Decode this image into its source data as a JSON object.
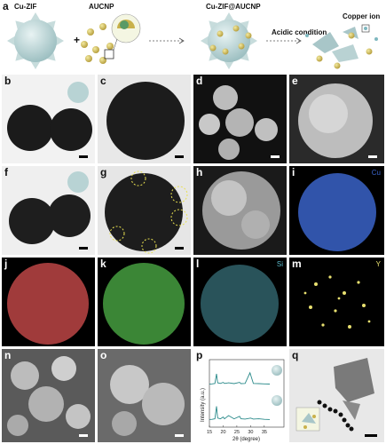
{
  "panel_a": {
    "label": "a",
    "cu_zif": "Cu-ZIF",
    "plus": "+",
    "aucnp": "AUCNP",
    "composite": "Cu-ZIF@AUCNP",
    "acidic": "Acidic condition",
    "copper_ion": "Copper ion"
  },
  "labels": {
    "b": "b",
    "c": "c",
    "d": "d",
    "e": "e",
    "f": "f",
    "g": "g",
    "h": "h",
    "i": "i",
    "j": "j",
    "k": "k",
    "l": "l",
    "m": "m",
    "n": "n",
    "o": "o",
    "p": "p",
    "q": "q"
  },
  "elements": {
    "i": "Cu",
    "l": "Si",
    "m": "Y"
  },
  "colors": {
    "cu_map": "#3a63c8",
    "map_j": "#c84a4a",
    "map_k": "#4aa844",
    "si_map": "#5ab8c8",
    "y_map": "#e8e070",
    "xrd_line": "#2a8a8a"
  },
  "chart_data": {
    "type": "line",
    "xlabel": "2θ (degree)",
    "ylabel": "Intensity (a.u.)",
    "xlim": [
      15,
      37
    ],
    "ticks_x": [
      "15",
      "20",
      "25",
      "30",
      "35"
    ],
    "series": [
      {
        "values": [
          [
            15,
            0.02
          ],
          [
            16,
            0.03
          ],
          [
            17,
            0.05
          ],
          [
            17.6,
            0.5
          ],
          [
            18,
            0.08
          ],
          [
            19,
            0.05
          ],
          [
            20,
            0.1
          ],
          [
            20.5,
            0.05
          ],
          [
            22,
            0.08
          ],
          [
            24,
            0.04
          ],
          [
            26,
            0.1
          ],
          [
            26.5,
            0.04
          ],
          [
            28,
            0.05
          ],
          [
            29.8,
            0.55
          ],
          [
            30.4,
            0.3
          ],
          [
            31,
            0.05
          ],
          [
            33,
            0.04
          ],
          [
            35,
            0.03
          ],
          [
            37,
            0.02
          ]
        ]
      },
      {
        "values": [
          [
            15,
            0.02
          ],
          [
            16,
            0.03
          ],
          [
            17,
            0.05
          ],
          [
            17.6,
            0.55
          ],
          [
            18,
            0.08
          ],
          [
            19,
            0.05
          ],
          [
            20,
            0.12
          ],
          [
            20.5,
            0.05
          ],
          [
            22,
            0.18
          ],
          [
            24,
            0.05
          ],
          [
            26,
            0.15
          ],
          [
            26.5,
            0.05
          ],
          [
            28,
            0.04
          ],
          [
            30,
            0.08
          ],
          [
            31,
            0.04
          ],
          [
            33,
            0.05
          ],
          [
            35,
            0.03
          ],
          [
            37,
            0.02
          ]
        ]
      }
    ]
  }
}
